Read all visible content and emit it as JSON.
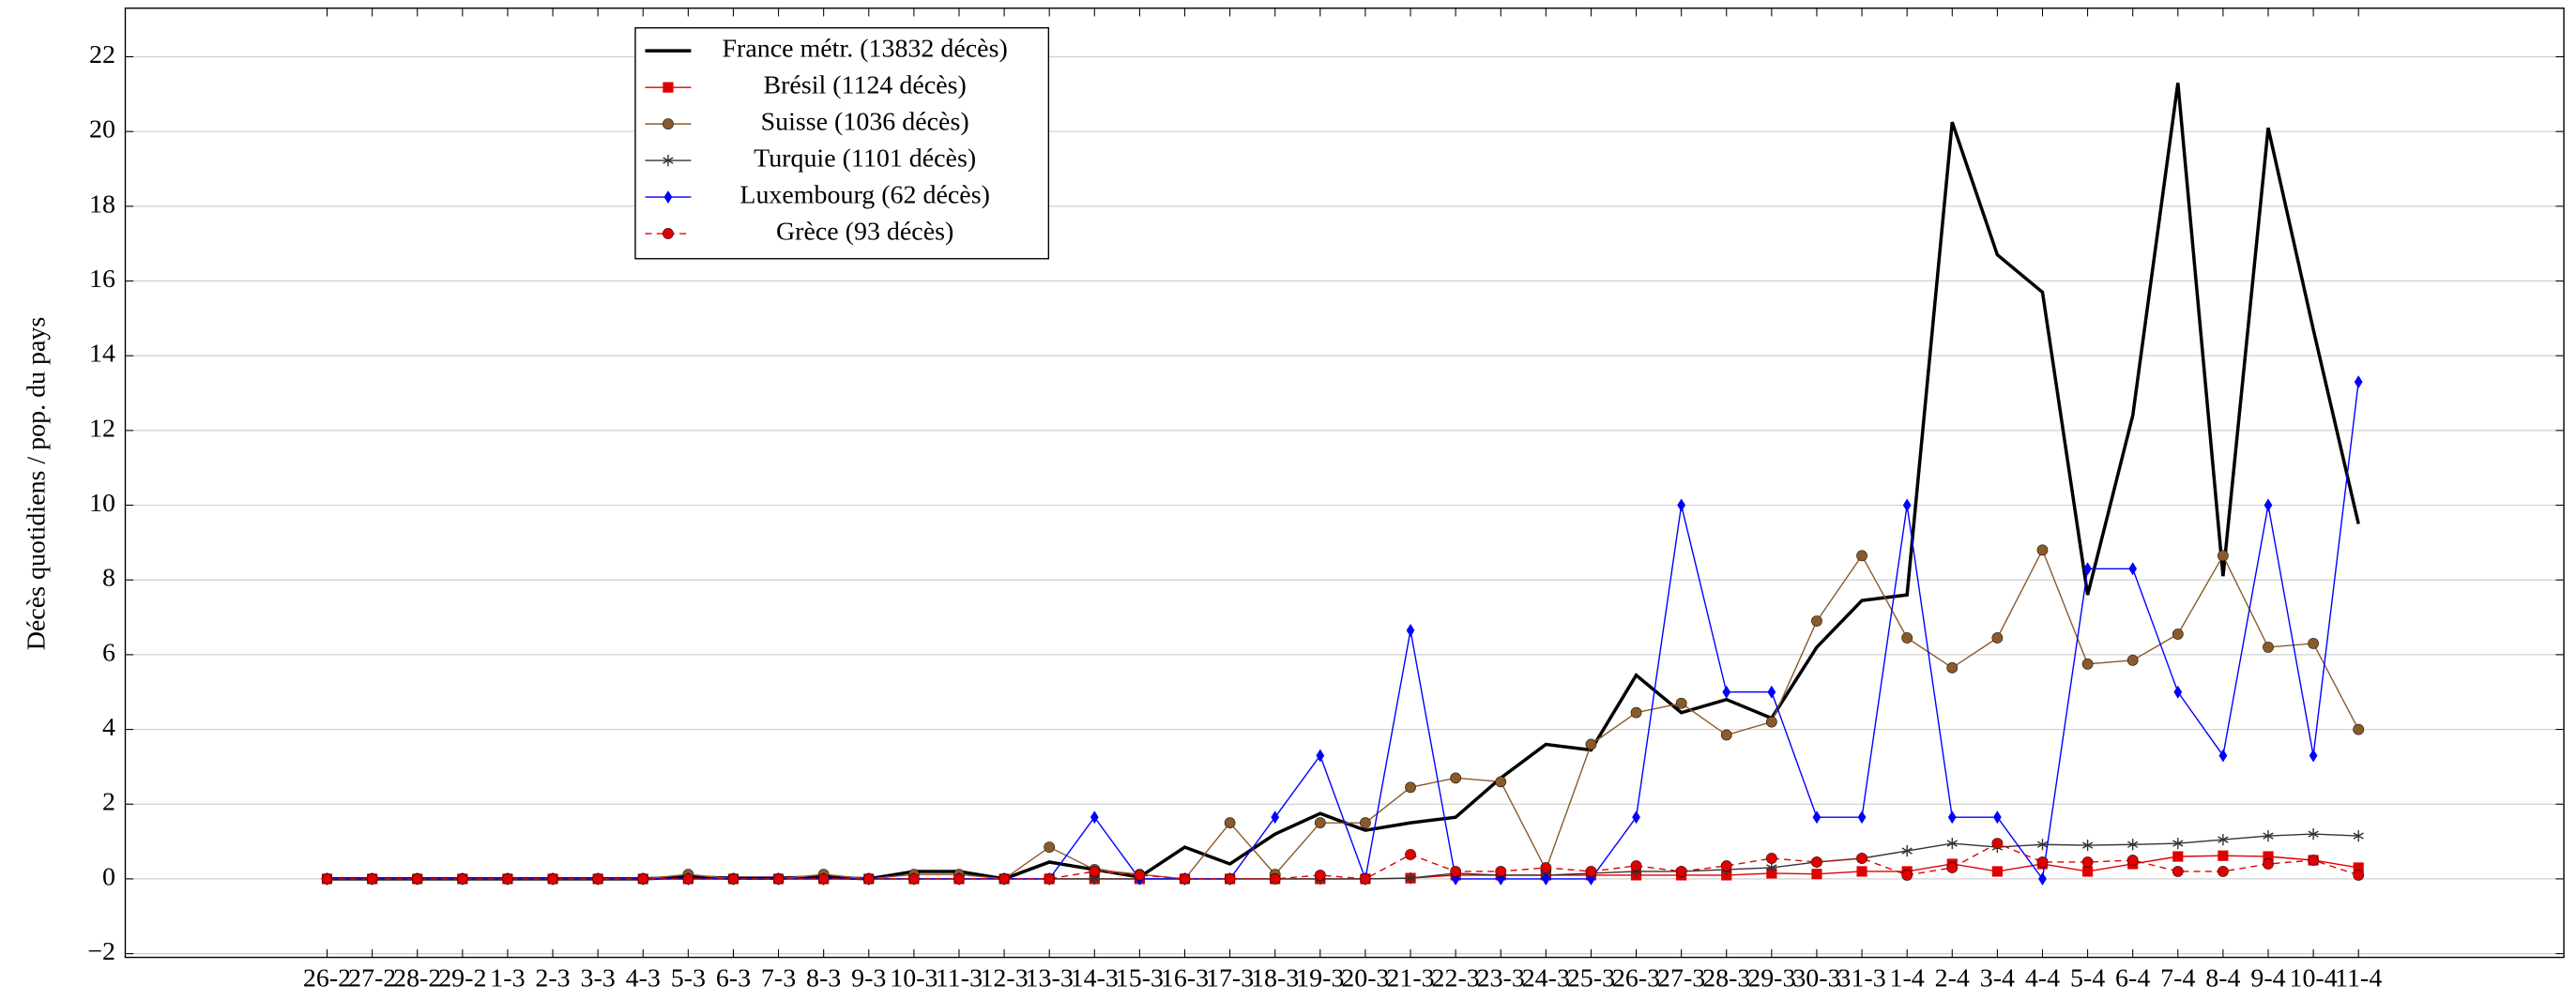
{
  "chart_data": {
    "type": "line",
    "ylabel": "Décès quotidiens / pop. du pays",
    "categories": [
      "26-2",
      "27-2",
      "28-2",
      "29-2",
      "1-3",
      "2-3",
      "3-3",
      "4-3",
      "5-3",
      "6-3",
      "7-3",
      "8-3",
      "9-3",
      "10-3",
      "11-3",
      "12-3",
      "13-3",
      "14-3",
      "15-3",
      "16-3",
      "17-3",
      "18-3",
      "19-3",
      "20-3",
      "21-3",
      "22-3",
      "23-3",
      "24-3",
      "25-3",
      "26-3",
      "27-3",
      "28-3",
      "29-3",
      "30-3",
      "31-3",
      "1-4",
      "2-4",
      "3-4",
      "4-4",
      "5-4",
      "6-4",
      "7-4",
      "8-4",
      "9-4",
      "10-4",
      "11-4"
    ],
    "ylim": [
      -2.1,
      23.3
    ],
    "yticks": [
      {
        "value": -2,
        "label": "−2"
      },
      0,
      2,
      4,
      6,
      8,
      10,
      12,
      14,
      16,
      18,
      20,
      22
    ],
    "grid": true,
    "legend": "upper left",
    "series": [
      {
        "name": "France métr. (13832 décès)",
        "color": "#000000",
        "marker": "none",
        "linestyle": "solid",
        "values": [
          0,
          0,
          0,
          0,
          0,
          0,
          0,
          0,
          0.05,
          0.02,
          0.02,
          0.05,
          0,
          0.2,
          0.2,
          0,
          0.45,
          0.25,
          0.05,
          0.85,
          0.4,
          1.2,
          1.75,
          1.3,
          1.5,
          1.65,
          2.7,
          3.6,
          3.45,
          5.45,
          4.45,
          4.8,
          4.3,
          6.2,
          7.45,
          7.6,
          20.25,
          16.7,
          15.7,
          7.6,
          12.4,
          21.3,
          8.1,
          20.1,
          14.7,
          9.5
        ]
      },
      {
        "name": "Brésil (1124 décès)",
        "color": "#e00000",
        "marker": "square",
        "linestyle": "solid",
        "values": [
          0,
          0,
          0,
          0,
          0,
          0,
          0,
          0,
          0,
          0,
          0,
          0,
          0,
          0,
          0,
          0,
          0,
          0,
          0,
          0,
          0,
          0,
          0,
          0,
          0.02,
          0.1,
          0.1,
          0.1,
          0.1,
          0.1,
          0.1,
          0.1,
          0.15,
          0.13,
          0.2,
          0.2,
          0.4,
          0.2,
          0.4,
          0.2,
          0.4,
          0.6,
          0.62,
          0.6,
          0.5,
          0.3
        ]
      },
      {
        "name": "Suisse (1036 décès)",
        "color": "#8b5a2b",
        "marker": "circle",
        "linestyle": "solid",
        "values": [
          0,
          0,
          0,
          0,
          0,
          0,
          0,
          0,
          0.12,
          0,
          0,
          0.12,
          0,
          0.12,
          0.12,
          0,
          0.85,
          0.25,
          0.12,
          0,
          1.5,
          0.12,
          1.5,
          1.5,
          2.45,
          2.7,
          2.6,
          0.25,
          3.6,
          4.45,
          4.7,
          3.85,
          4.2,
          6.9,
          8.65,
          6.45,
          5.65,
          6.45,
          8.8,
          5.75,
          5.85,
          6.55,
          8.65,
          6.2,
          6.3,
          4.0
        ]
      },
      {
        "name": "Turquie (1101 décès)",
        "color": "#333333",
        "marker": "star",
        "linestyle": "solid",
        "values": [
          0,
          0,
          0,
          0,
          0,
          0,
          0,
          0,
          0,
          0,
          0,
          0,
          0,
          0,
          0,
          0,
          0,
          0,
          0,
          0,
          0,
          0,
          0,
          0,
          0.02,
          0.15,
          0.1,
          0.1,
          0.15,
          0.2,
          0.2,
          0.25,
          0.3,
          0.45,
          0.55,
          0.75,
          0.95,
          0.85,
          0.92,
          0.9,
          0.92,
          0.95,
          1.05,
          1.15,
          1.2,
          1.15
        ]
      },
      {
        "name": "Luxembourg (62 décès)",
        "color": "#0000ff",
        "marker": "diamond",
        "linestyle": "solid",
        "values": [
          0,
          0,
          0,
          0,
          0,
          0,
          0,
          0,
          0,
          0,
          0,
          0,
          0,
          0,
          0,
          0,
          0,
          1.65,
          0,
          0,
          0,
          1.65,
          3.3,
          0,
          6.65,
          0,
          0,
          0,
          0,
          1.65,
          10,
          5,
          5,
          1.65,
          1.65,
          10,
          1.65,
          1.65,
          0,
          8.3,
          8.3,
          5,
          3.3,
          10,
          3.3,
          13.3
        ]
      },
      {
        "name": "Grèce (93 décès)",
        "color": "#e00000",
        "marker": "circle",
        "linestyle": "dashed",
        "values": [
          0,
          0,
          0,
          0,
          0,
          0,
          0,
          0,
          0,
          0,
          0,
          0,
          0,
          0,
          0,
          0,
          0,
          0.2,
          0.1,
          0,
          0,
          0,
          0.1,
          0,
          0.65,
          0.2,
          0.2,
          0.3,
          0.2,
          0.35,
          0.2,
          0.35,
          0.55,
          0.45,
          0.55,
          0.1,
          0.3,
          0.95,
          0.45,
          0.45,
          0.5,
          0.2,
          0.2,
          0.4,
          0.5,
          0.1
        ]
      }
    ]
  }
}
